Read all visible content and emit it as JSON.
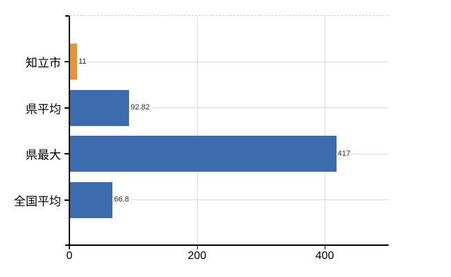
{
  "chart_data": {
    "type": "bar",
    "orientation": "horizontal",
    "title": "",
    "xlabel": "",
    "ylabel": "",
    "categories": [
      "知立市",
      "県平均",
      "県最大",
      "全国平均"
    ],
    "values": [
      11,
      92.82,
      417,
      66.8
    ],
    "value_labels": [
      "11",
      "92.82",
      "417",
      "66.8"
    ],
    "bar_colors": [
      "#ec9233",
      "#3d6cae",
      "#3d6cae",
      "#3d6cae"
    ],
    "x_ticks": [
      0,
      200,
      400
    ],
    "x_tick_labels": [
      "0",
      "200",
      "400"
    ],
    "xlim": [
      0,
      500
    ],
    "grid": true,
    "legend": false
  },
  "colors": {
    "bar_blue": "#3d6cae",
    "bar_orange": "#ec9233",
    "axis": "#000000",
    "gridline": "#dadada",
    "category_line": "#d6dad3",
    "background": "#ffffff",
    "text": "#000000",
    "value_text": "#2b2b2b"
  }
}
